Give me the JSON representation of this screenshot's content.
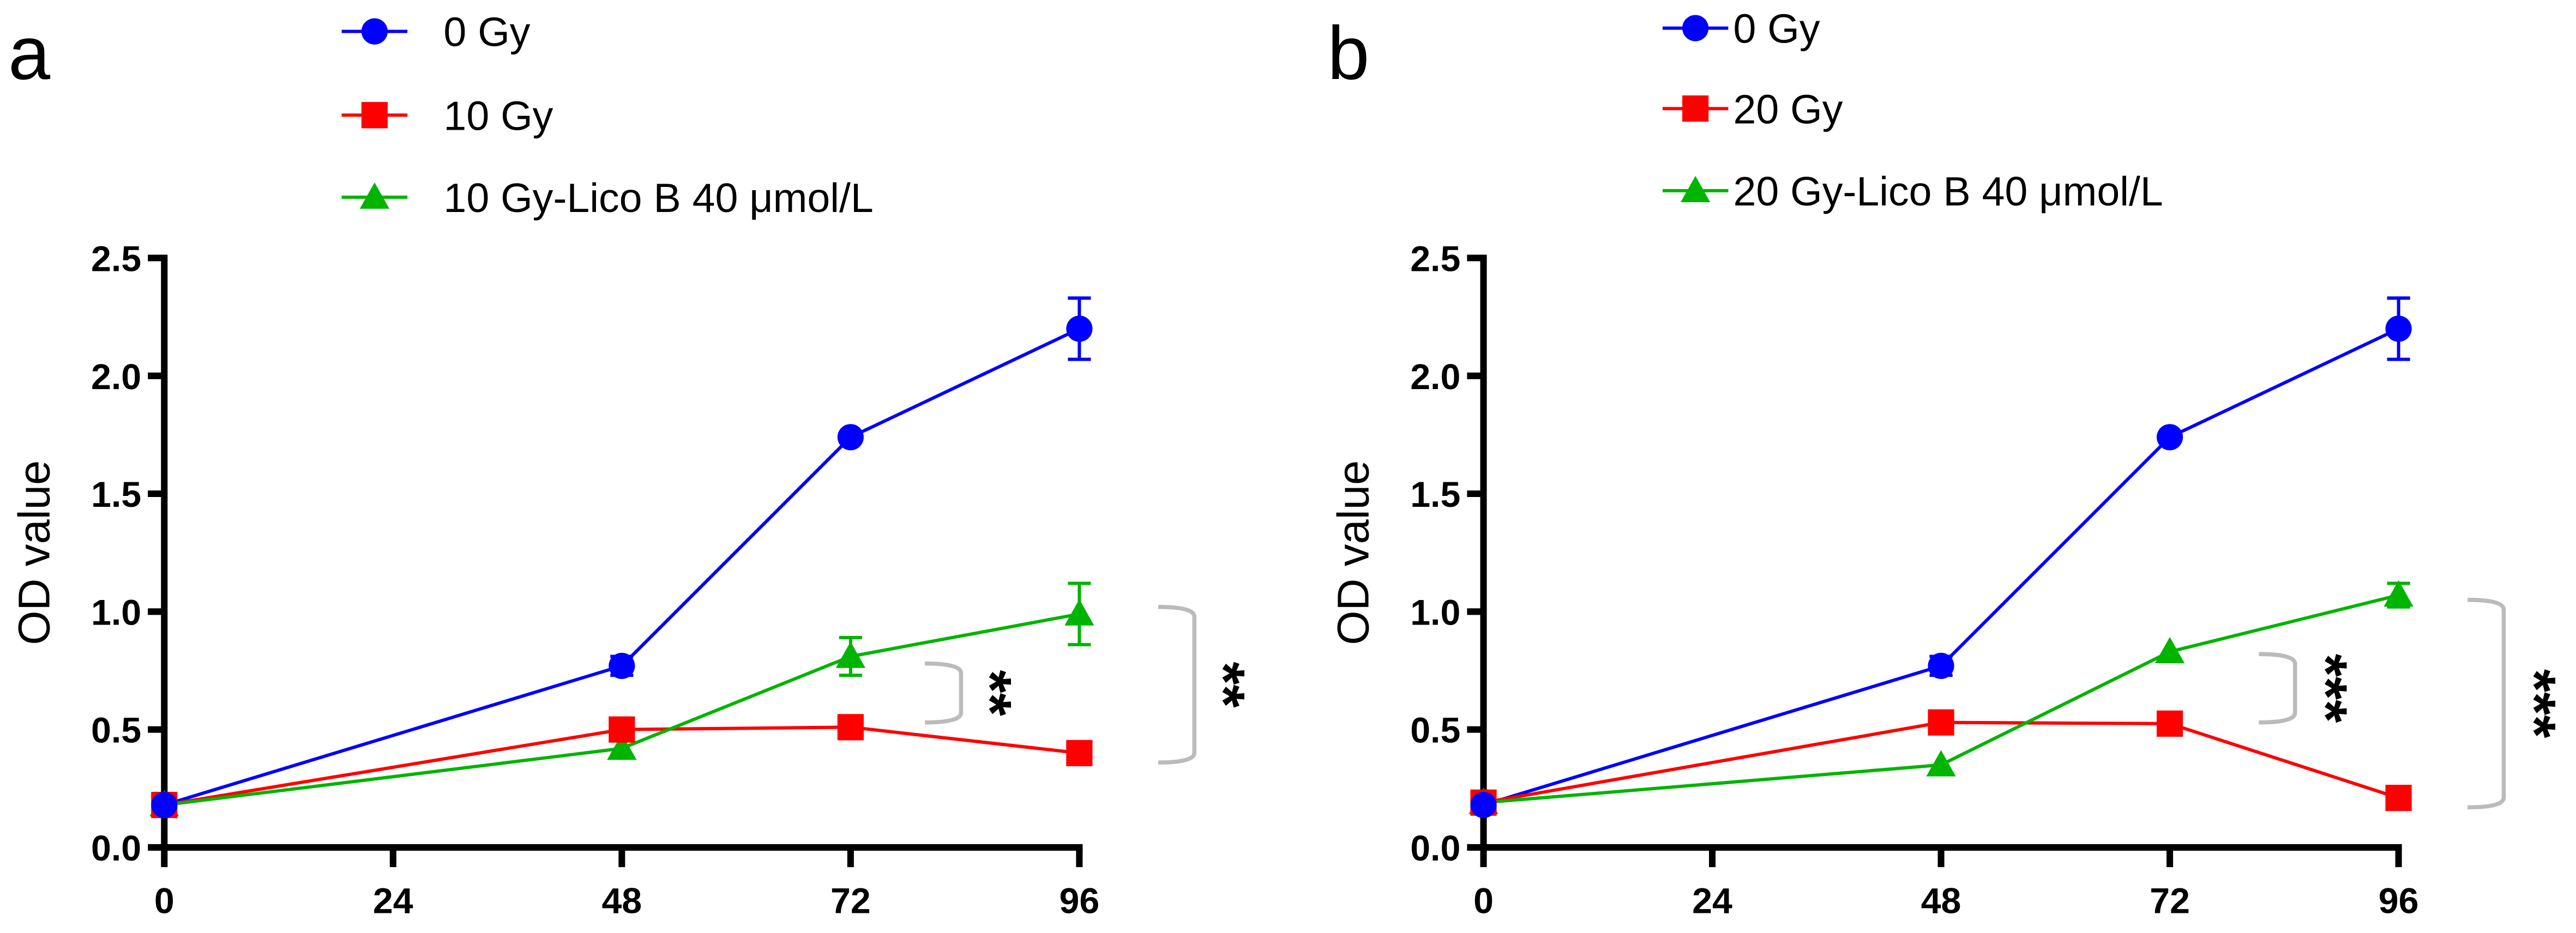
{
  "chart_data": [
    {
      "type": "line",
      "panel_label": "a",
      "ylabel": "OD value",
      "xlabel": "",
      "x": [
        0,
        48,
        72,
        96
      ],
      "xticks": [
        "0",
        "24",
        "48",
        "72",
        "96"
      ],
      "yticks": [
        "0.0",
        "0.5",
        "1.0",
        "1.5",
        "2.0",
        "2.5"
      ],
      "ylim": [
        0,
        2.5
      ],
      "xlim": [
        0,
        96
      ],
      "grid": false,
      "legend_position": "top",
      "series": [
        {
          "name": "0 Gy",
          "color": "#0000ff",
          "marker": "circle",
          "values": [
            0.18,
            0.77,
            1.74,
            2.2
          ],
          "errors": [
            0.02,
            0.04,
            0.02,
            0.13
          ]
        },
        {
          "name": "10 Gy",
          "color": "#ff0000",
          "marker": "square",
          "values": [
            0.18,
            0.5,
            0.51,
            0.4
          ],
          "errors": [
            0.01,
            0.02,
            0.02,
            0.02
          ]
        },
        {
          "name": "10 Gy-Lico B 40 μmol/L",
          "color": "#00b400",
          "marker": "triangle",
          "values": [
            0.18,
            0.42,
            0.81,
            0.99
          ],
          "errors": [
            0.01,
            0.02,
            0.08,
            0.13
          ]
        }
      ],
      "annotations": [
        {
          "text": "**",
          "x": 72,
          "range": [
            0.53,
            0.78
          ]
        },
        {
          "text": "**",
          "x": 96,
          "range": [
            0.36,
            1.02
          ]
        }
      ]
    },
    {
      "type": "line",
      "panel_label": "b",
      "ylabel": "OD value",
      "xlabel": "",
      "x": [
        0,
        48,
        72,
        96
      ],
      "xticks": [
        "0",
        "24",
        "48",
        "72",
        "96"
      ],
      "yticks": [
        "0.0",
        "0.5",
        "1.0",
        "1.5",
        "2.0",
        "2.5"
      ],
      "ylim": [
        0,
        2.5
      ],
      "xlim": [
        0,
        96
      ],
      "grid": false,
      "legend_position": "top",
      "series": [
        {
          "name": "0 Gy",
          "color": "#0000ff",
          "marker": "circle",
          "values": [
            0.18,
            0.77,
            1.74,
            2.2
          ],
          "errors": [
            0.02,
            0.04,
            0.02,
            0.13
          ]
        },
        {
          "name": "20 Gy",
          "color": "#ff0000",
          "marker": "square",
          "values": [
            0.19,
            0.53,
            0.525,
            0.21
          ],
          "errors": [
            0.01,
            0.02,
            0.02,
            0.02
          ]
        },
        {
          "name": "20 Gy-Lico B 40 μmol/L",
          "color": "#00b400",
          "marker": "triangle",
          "values": [
            0.19,
            0.35,
            0.83,
            1.07
          ],
          "errors": [
            0.01,
            0.02,
            0.02,
            0.05
          ]
        }
      ],
      "annotations": [
        {
          "text": "***",
          "x": 72,
          "range": [
            0.53,
            0.82
          ]
        },
        {
          "text": "***",
          "x": 96,
          "range": [
            0.17,
            1.05
          ]
        }
      ]
    }
  ]
}
